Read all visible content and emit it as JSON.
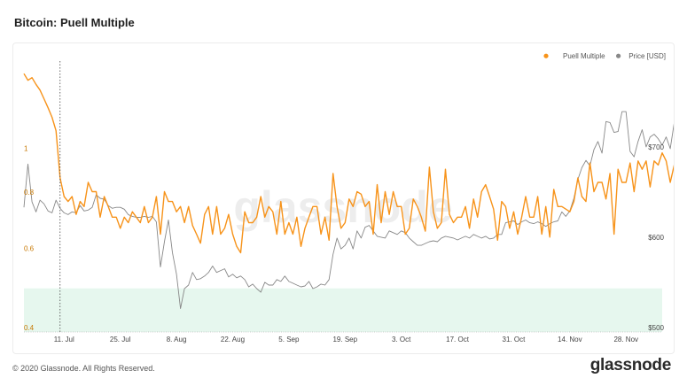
{
  "header": {
    "title": "Bitcoin: Puell Multiple"
  },
  "footer": {
    "copyright": "© 2020 Glassnode. All Rights Reserved.",
    "logo": "glassnode"
  },
  "watermark": "glassnode",
  "chart_data": {
    "type": "line",
    "title": "Bitcoin: Puell Multiple",
    "legend": {
      "position": "top-right"
    },
    "x": {
      "type": "date",
      "range": [
        "2020-07-01",
        "2020-12-07"
      ],
      "ticks": [
        {
          "date": "2020-07-11",
          "label": "11. Jul"
        },
        {
          "date": "2020-07-25",
          "label": "25. Jul"
        },
        {
          "date": "2020-08-08",
          "label": "8. Aug"
        },
        {
          "date": "2020-08-22",
          "label": "22. Aug"
        },
        {
          "date": "2020-09-05",
          "label": "5. Sep"
        },
        {
          "date": "2020-09-19",
          "label": "19. Sep"
        },
        {
          "date": "2020-10-03",
          "label": "3. Oct"
        },
        {
          "date": "2020-10-17",
          "label": "17. Oct"
        },
        {
          "date": "2020-10-31",
          "label": "31. Oct"
        },
        {
          "date": "2020-11-14",
          "label": "14. Nov"
        },
        {
          "date": "2020-11-28",
          "label": "28. Nov"
        }
      ]
    },
    "y_left": {
      "scale": "log",
      "range": [
        0.4,
        1.6
      ],
      "ticks": [
        {
          "value": 0.4,
          "label": "0.4"
        },
        {
          "value": 0.6,
          "label": "0.6"
        },
        {
          "value": 0.8,
          "label": "0.8"
        },
        {
          "value": 1,
          "label": "1"
        }
      ],
      "color": "#f7931a"
    },
    "y_right": {
      "scale": "linear",
      "range": [
        500,
        800
      ],
      "ticks": [
        {
          "value": 500,
          "label": "$500"
        },
        {
          "value": 600,
          "label": "$600"
        },
        {
          "value": 700,
          "label": "$700"
        }
      ]
    },
    "band": {
      "from": 0.4,
      "to": 0.5,
      "color": "#e6f7ee"
    },
    "marker_line": {
      "date": "2020-07-10"
    },
    "series": [
      {
        "name": "Puell Multiple",
        "axis": "left",
        "color": "#f7931a",
        "start": "2020-07-01",
        "values": [
          1.5,
          1.45,
          1.47,
          1.42,
          1.38,
          1.32,
          1.26,
          1.2,
          1.12,
          0.88,
          0.8,
          0.78,
          0.8,
          0.73,
          0.78,
          0.76,
          0.86,
          0.82,
          0.82,
          0.72,
          0.8,
          0.76,
          0.72,
          0.72,
          0.68,
          0.72,
          0.7,
          0.74,
          0.72,
          0.7,
          0.76,
          0.7,
          0.72,
          0.8,
          0.66,
          0.82,
          0.78,
          0.78,
          0.74,
          0.76,
          0.7,
          0.76,
          0.69,
          0.66,
          0.63,
          0.73,
          0.76,
          0.66,
          0.76,
          0.66,
          0.68,
          0.73,
          0.66,
          0.62,
          0.6,
          0.74,
          0.7,
          0.7,
          0.72,
          0.8,
          0.72,
          0.76,
          0.74,
          0.66,
          0.78,
          0.66,
          0.7,
          0.66,
          0.72,
          0.62,
          0.68,
          0.72,
          0.76,
          0.76,
          0.66,
          0.72,
          0.64,
          0.9,
          0.76,
          0.68,
          0.7,
          0.79,
          0.76,
          0.82,
          0.81,
          0.76,
          0.78,
          0.66,
          0.85,
          0.7,
          0.82,
          0.73,
          0.82,
          0.76,
          0.76,
          0.66,
          0.68,
          0.79,
          0.76,
          0.72,
          0.67,
          0.93,
          0.74,
          0.68,
          0.7,
          0.92,
          0.73,
          0.7,
          0.72,
          0.72,
          0.76,
          0.68,
          0.79,
          0.72,
          0.82,
          0.85,
          0.8,
          0.75,
          0.64,
          0.78,
          0.76,
          0.68,
          0.74,
          0.66,
          0.72,
          0.8,
          0.72,
          0.72,
          0.8,
          0.66,
          0.76,
          0.65,
          0.83,
          0.76,
          0.76,
          0.75,
          0.74,
          0.78,
          0.88,
          0.8,
          0.78,
          0.95,
          0.82,
          0.86,
          0.86,
          0.79,
          0.9,
          0.66,
          0.92,
          0.86,
          0.86,
          0.95,
          0.82,
          0.96,
          0.92,
          0.96,
          0.84,
          0.96,
          0.94,
          1.0,
          0.96,
          0.86,
          0.94,
          0.92,
          0.84,
          0.88,
          0.92,
          0.98,
          0.92,
          0.94,
          0.92,
          0.88,
          0.96,
          0.9,
          0.96,
          0.92,
          1.06,
          0.94,
          0.95,
          0.94,
          1.07,
          1.02
        ]
      },
      {
        "name": "Price [USD]",
        "axis": "right",
        "color": "#888888",
        "start": "2020-07-01",
        "values": [
          638,
          686,
          644,
          633,
          646,
          642,
          634,
          632,
          646,
          637,
          632,
          630,
          633,
          632,
          640,
          634,
          635,
          638,
          652,
          648,
          647,
          640,
          637,
          638,
          638,
          636,
          630,
          628,
          627,
          627,
          628,
          627,
          628,
          622,
          572,
          600,
          624,
          588,
          564,
          526,
          548,
          552,
          566,
          558,
          559,
          562,
          566,
          573,
          566,
          568,
          570,
          561,
          564,
          560,
          562,
          558,
          550,
          553,
          548,
          544,
          555,
          552,
          552,
          558,
          556,
          562,
          556,
          554,
          552,
          550,
          551,
          556,
          548,
          550,
          553,
          552,
          558,
          586,
          604,
          592,
          596,
          604,
          592,
          612,
          604,
          616,
          618,
          612,
          606,
          605,
          604,
          612,
          610,
          608,
          612,
          610,
          604,
          600,
          596,
          596,
          598,
          600,
          601,
          600,
          604,
          606,
          605,
          604,
          602,
          604,
          606,
          604,
          608,
          606,
          604,
          606,
          603,
          604,
          608,
          608,
          621,
          622,
          623,
          619,
          622,
          624,
          621,
          620,
          622,
          620,
          617,
          620,
          622,
          623,
          633,
          628,
          634,
          648,
          669,
          682,
          690,
          684,
          702,
          711,
          698,
          733,
          732,
          721,
          722,
          744,
          744,
          700,
          694,
          711,
          724,
          705,
          716,
          719,
          714,
          707,
          716,
          703,
          732,
          740,
          747,
          746,
          733,
          734,
          736,
          738,
          732,
          733,
          757,
          758,
          768,
          783,
          792,
          779,
          776,
          775
        ]
      }
    ]
  }
}
